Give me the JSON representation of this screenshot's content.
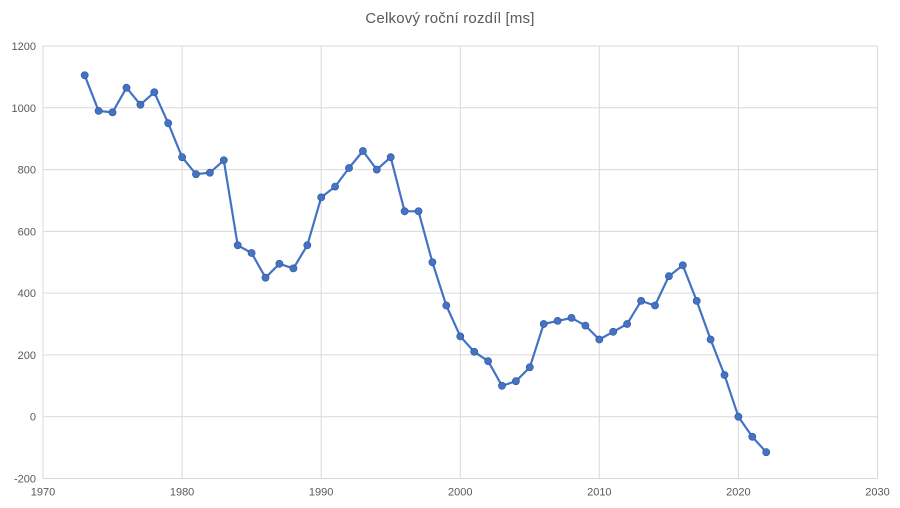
{
  "title": "Celkový roční rozdíl [ms]",
  "colors": {
    "line": "#4472C4",
    "marker_fill": "#4472C4",
    "marker_edge": "#2F5597",
    "grid": "#D9D9D9",
    "axis_text": "#595959",
    "title_text": "#595959",
    "background": "#FFFFFF"
  },
  "chart_data": {
    "type": "line",
    "title": "Celkový roční rozdíl [ms]",
    "xlabel": "",
    "ylabel": "",
    "legend": false,
    "grid": true,
    "marker": "circle",
    "xlim": [
      1970,
      2030
    ],
    "ylim": [
      -200,
      1200
    ],
    "x_ticks": [
      1970,
      1980,
      1990,
      2000,
      2010,
      2020,
      2030
    ],
    "y_ticks": [
      -200,
      0,
      200,
      400,
      600,
      800,
      1000,
      1200
    ],
    "x": [
      1973,
      1974,
      1975,
      1976,
      1977,
      1978,
      1979,
      1980,
      1981,
      1982,
      1983,
      1984,
      1985,
      1986,
      1987,
      1988,
      1989,
      1990,
      1991,
      1992,
      1993,
      1994,
      1995,
      1996,
      1997,
      1998,
      1999,
      2000,
      2001,
      2002,
      2003,
      2004,
      2005,
      2006,
      2007,
      2008,
      2009,
      2010,
      2011,
      2012,
      2013,
      2014,
      2015,
      2016,
      2017,
      2018,
      2019,
      2020,
      2021,
      2022
    ],
    "y": [
      1105,
      990,
      985,
      1065,
      1010,
      1050,
      950,
      840,
      785,
      790,
      830,
      555,
      530,
      450,
      495,
      480,
      555,
      710,
      745,
      805,
      860,
      800,
      840,
      665,
      665,
      500,
      360,
      260,
      210,
      180,
      100,
      115,
      160,
      300,
      310,
      320,
      295,
      250,
      275,
      300,
      375,
      360,
      455,
      490,
      375,
      250,
      135,
      0,
      -65,
      -115
    ]
  }
}
